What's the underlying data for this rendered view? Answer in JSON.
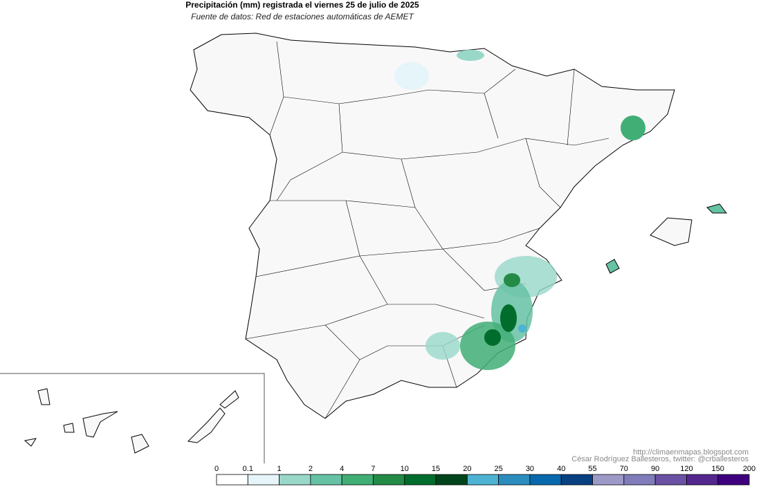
{
  "title": "Precipitación (mm) registrada el viernes 25 de julio de 2025",
  "subtitle": "Fuente de datos: Red de estaciones automáticas de AEMET",
  "credits": [
    "http://climaenmapas.blogspot.com",
    "César Rodríguez Ballesteros, twitter: @crballesteros"
  ],
  "legend": {
    "breaks": [
      0,
      0.1,
      1,
      2,
      4,
      7,
      10,
      15,
      20,
      25,
      30,
      40,
      55,
      70,
      90,
      120,
      150,
      200
    ],
    "colors": [
      "#ffffff",
      "#e5f5f9",
      "#99d8c9",
      "#66c2a4",
      "#41ae76",
      "#238b45",
      "#006d2c",
      "#00441b",
      "#4eb3d3",
      "#2b8cbe",
      "#0868ac",
      "#084081",
      "#9e9ac8",
      "#807dba",
      "#6a51a3",
      "#54278f",
      "#3f007d"
    ]
  }
}
